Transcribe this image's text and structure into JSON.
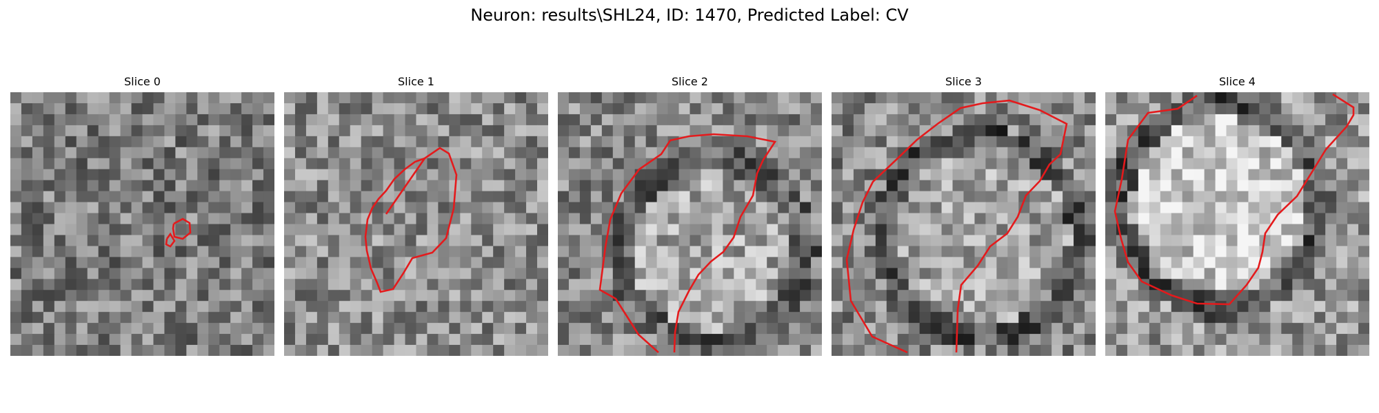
{
  "figure": {
    "title": "Neuron: results\\SHL24, ID: 1470, Predicted Label: CV"
  },
  "panels": [
    {
      "title": "Slice 0",
      "image": "grayscale-noise-slice-0"
    },
    {
      "title": "Slice 1",
      "image": "grayscale-noise-slice-1"
    },
    {
      "title": "Slice 2",
      "image": "grayscale-noise-slice-2"
    },
    {
      "title": "Slice 3",
      "image": "grayscale-noise-slice-3"
    },
    {
      "title": "Slice 4",
      "image": "grayscale-noise-slice-4"
    }
  ],
  "colors": {
    "contour": "#e41a1c",
    "background": "#ffffff"
  }
}
